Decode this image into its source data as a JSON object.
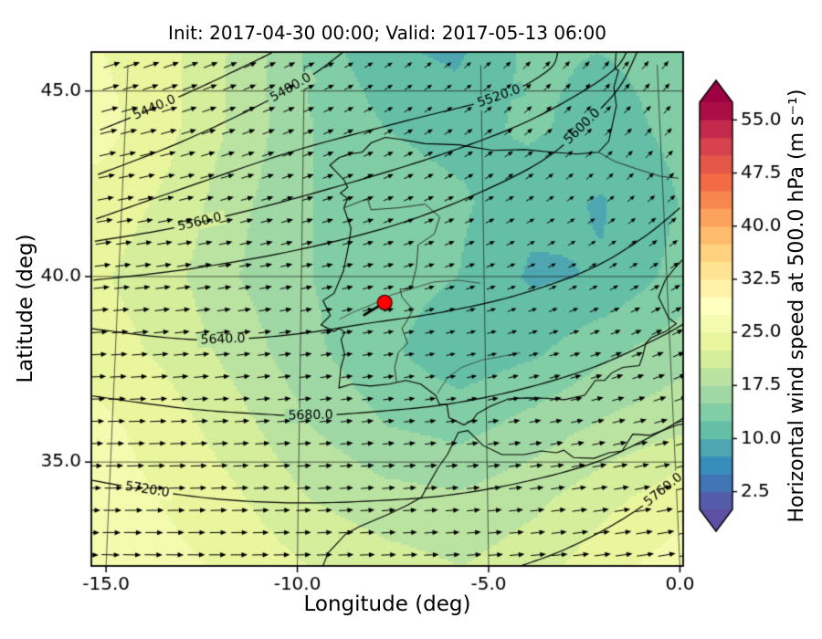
{
  "chart_data": {
    "type": "heatmap",
    "title": "Init: 2017-04-30 00:00; Valid: 2017-05-13 06:00",
    "xlabel": "Longitude (deg)",
    "ylabel": "Latitude (deg)",
    "xlim": [
      -15.7,
      0.4
    ],
    "ylim": [
      32.2,
      46.05
    ],
    "xticks": {
      "values": [
        -15,
        -10,
        -5,
        0
      ],
      "labels": [
        "-15.0",
        "-10.0",
        "-5.0",
        "0.0"
      ]
    },
    "yticks": {
      "values": [
        35,
        40,
        45
      ],
      "labels": [
        "35.0",
        "40.0",
        "45.0"
      ]
    },
    "graticule": {
      "meridians": [
        -15,
        -10,
        -5,
        0
      ],
      "parallels": [
        35,
        40,
        45
      ]
    },
    "colorbar": {
      "label": "Horizontal wind speed at 500.0 hPa (m s⁻¹)",
      "vmin": 0,
      "vmax": 57.5,
      "level_step": 2.5,
      "colormap": "Spectral_r",
      "colors": [
        "#5e4fa2",
        "#3288bd",
        "#66c2a5",
        "#abdda4",
        "#e6f598",
        "#ffffbf",
        "#fee08b",
        "#fdae61",
        "#f46d43",
        "#d53e4f",
        "#9e0142"
      ],
      "tick_values": [
        2.5,
        10.0,
        17.5,
        25.0,
        32.5,
        40.0,
        47.5,
        55.0
      ],
      "tick_labels": [
        "2.5",
        "10.0",
        "17.5",
        "25.0",
        "32.5",
        "40.0",
        "47.5",
        "55.0"
      ]
    },
    "wind_grid": {
      "lons": [
        -15.7,
        -13.7,
        -11.7,
        -9.7,
        -7.7,
        -5.7,
        -3.7,
        -1.7,
        0.4
      ],
      "lats": [
        32.2,
        34,
        36,
        38,
        40,
        42,
        44,
        46.05
      ],
      "speed": [
        [
          27,
          26,
          24.5,
          22.5,
          21,
          20,
          21.5,
          24.5,
          26.5
        ],
        [
          26.5,
          25,
          23,
          20,
          18.5,
          18,
          19.5,
          22,
          24.5
        ],
        [
          26,
          24,
          21,
          17.5,
          15,
          14,
          16,
          18,
          19.5
        ],
        [
          24,
          22,
          19,
          15.5,
          13,
          10.8,
          12,
          14.5,
          16.5
        ],
        [
          23,
          21,
          17.5,
          15,
          13.5,
          12.5,
          9.6,
          10.2,
          13.5
        ],
        [
          24,
          22,
          18,
          15,
          14,
          13,
          10.8,
          9.8,
          12.5
        ],
        [
          26,
          23,
          19,
          15,
          12.5,
          11.5,
          13,
          11.5,
          13
        ],
        [
          25,
          23,
          19,
          14,
          10.5,
          9.5,
          13,
          12.5,
          13
        ]
      ],
      "direction_deg": [
        [
          -2,
          -1,
          0,
          1,
          2,
          3,
          5,
          7,
          10
        ],
        [
          0,
          1,
          2,
          3,
          4,
          5,
          7,
          9,
          12
        ],
        [
          1,
          2,
          4,
          5,
          7,
          8,
          10,
          13,
          16
        ],
        [
          3,
          5,
          7,
          9,
          11,
          13,
          16,
          20,
          24
        ],
        [
          6,
          8,
          10,
          13,
          16,
          19,
          24,
          30,
          34
        ],
        [
          10,
          12,
          15,
          18,
          22,
          26,
          32,
          38,
          42
        ],
        [
          14,
          16,
          20,
          24,
          28,
          34,
          40,
          46,
          48
        ],
        [
          18,
          20,
          24,
          28,
          34,
          40,
          46,
          50,
          52
        ]
      ]
    },
    "quiver": {
      "dlon": 0.56,
      "dlat": 0.6,
      "length_base": 3.5,
      "length_scale": 0.62
    },
    "height_contours": [
      {
        "label": "5440.0",
        "label_lon": -14.2,
        "path": [
          [
            -15.7,
            43.95
          ],
          [
            -14.2,
            44.55
          ],
          [
            -12.6,
            45.25
          ],
          [
            -11.2,
            45.9
          ],
          [
            -10.9,
            46.05
          ]
        ]
      },
      {
        "label": "5480.0",
        "label_lon": -10.4,
        "path": [
          [
            -15.7,
            42.75
          ],
          [
            -13.6,
            43.55
          ],
          [
            -11.5,
            44.5
          ],
          [
            -9.9,
            45.35
          ],
          [
            -8.9,
            46.05
          ]
        ]
      },
      {
        "label": "5520.0",
        "label_lon": -4.5,
        "path": [
          [
            -15.7,
            41.55
          ],
          [
            -13.1,
            42.45
          ],
          [
            -10.2,
            43.4
          ],
          [
            -7.1,
            44.2
          ],
          [
            -4.5,
            44.85
          ],
          [
            -3.1,
            45.55
          ],
          [
            -2.8,
            46.05
          ]
        ]
      },
      {
        "label": "5560.0",
        "label_lon": -12.9,
        "path": [
          [
            -15.7,
            40.95
          ],
          [
            -13.6,
            41.3
          ],
          [
            -11.2,
            41.85
          ],
          [
            -8.6,
            42.55
          ],
          [
            -6.1,
            43.3
          ],
          [
            -3.9,
            44.1
          ],
          [
            -2.2,
            44.95
          ],
          [
            -1.2,
            45.6
          ],
          [
            -0.85,
            46.05
          ]
        ]
      },
      {
        "label": "5600.0",
        "label_lon": -2.15,
        "path": [
          [
            -15.7,
            39.9
          ],
          [
            -13.1,
            40.2
          ],
          [
            -10.2,
            40.7
          ],
          [
            -7.4,
            41.4
          ],
          [
            -5.0,
            42.3
          ],
          [
            -3.2,
            43.2
          ],
          [
            -2.0,
            44.2
          ],
          [
            -1.1,
            45.1
          ],
          [
            -0.55,
            46.05
          ]
        ]
      },
      {
        "label": "5640.0",
        "label_lon": -12.1,
        "path": [
          [
            -15.7,
            38.6
          ],
          [
            -13.6,
            38.35
          ],
          [
            -12.1,
            38.3
          ],
          [
            -10.1,
            38.45
          ],
          [
            -8.1,
            38.75
          ],
          [
            -6.1,
            39.05
          ],
          [
            -4.1,
            39.5
          ],
          [
            -2.1,
            40.2
          ],
          [
            -0.6,
            41.05
          ],
          [
            0.45,
            41.85
          ]
        ]
      },
      {
        "label": "5680.0",
        "label_lon": -9.7,
        "path": [
          [
            -15.7,
            36.8
          ],
          [
            -13.1,
            36.45
          ],
          [
            -11.1,
            36.3
          ],
          [
            -9.7,
            36.25
          ],
          [
            -8.1,
            36.35
          ],
          [
            -6.1,
            36.55
          ],
          [
            -4.1,
            36.95
          ],
          [
            -2.1,
            37.55
          ],
          [
            -0.4,
            38.3
          ],
          [
            0.45,
            38.75
          ]
        ]
      },
      {
        "label": "5720.0",
        "label_lon": -14.0,
        "path": [
          [
            -15.7,
            34.55
          ],
          [
            -14.0,
            34.25
          ],
          [
            -12.1,
            34.0
          ],
          [
            -10.1,
            33.9
          ],
          [
            -8.1,
            33.95
          ],
          [
            -6.1,
            34.1
          ],
          [
            -4.1,
            34.45
          ],
          [
            -2.1,
            35.0
          ],
          [
            -0.4,
            35.8
          ],
          [
            0.45,
            36.3
          ]
        ]
      },
      {
        "label": "5760.0",
        "label_lon": -0.4,
        "path": [
          [
            -4.3,
            32.15
          ],
          [
            -3.1,
            32.6
          ],
          [
            -1.9,
            33.2
          ],
          [
            -0.8,
            33.9
          ],
          [
            0.45,
            34.9
          ]
        ]
      }
    ],
    "coastlines": [
      [
        [
          -1.15,
          46.05
        ],
        [
          -1.2,
          45.6
        ],
        [
          -1.1,
          45.55
        ],
        [
          -1.25,
          45.1
        ],
        [
          -1.2,
          44.6
        ],
        [
          -1.45,
          43.65
        ],
        [
          -1.75,
          43.35
        ],
        [
          -2.35,
          43.3
        ],
        [
          -3.05,
          43.35
        ],
        [
          -3.8,
          43.42
        ],
        [
          -4.7,
          43.4
        ],
        [
          -5.65,
          43.55
        ],
        [
          -6.6,
          43.58
        ],
        [
          -7.3,
          43.7
        ],
        [
          -7.7,
          43.75
        ],
        [
          -8.1,
          43.6
        ],
        [
          -8.35,
          43.35
        ],
        [
          -8.7,
          43.3
        ],
        [
          -9.0,
          43.2
        ],
        [
          -9.25,
          43.0
        ],
        [
          -8.85,
          42.6
        ],
        [
          -8.75,
          42.4
        ],
        [
          -8.95,
          42.25
        ],
        [
          -8.75,
          42.1
        ],
        [
          -8.85,
          41.85
        ],
        [
          -8.65,
          41.3
        ],
        [
          -8.7,
          40.9
        ],
        [
          -8.85,
          40.15
        ],
        [
          -9.1,
          39.55
        ],
        [
          -9.4,
          39.35
        ],
        [
          -9.2,
          38.95
        ],
        [
          -9.45,
          38.7
        ],
        [
          -9.1,
          38.52
        ],
        [
          -8.95,
          38.6
        ],
        [
          -8.8,
          38.5
        ],
        [
          -8.9,
          38.3
        ],
        [
          -8.8,
          37.9
        ],
        [
          -8.9,
          37.55
        ],
        [
          -8.95,
          37.0
        ],
        [
          -8.6,
          37.1
        ],
        [
          -8.1,
          37.05
        ],
        [
          -7.6,
          37.1
        ],
        [
          -7.15,
          37.2
        ],
        [
          -6.75,
          37.1
        ],
        [
          -6.35,
          36.8
        ],
        [
          -6.25,
          36.55
        ],
        [
          -6.05,
          36.55
        ],
        [
          -6.0,
          36.2
        ],
        [
          -5.8,
          36.1
        ],
        [
          -5.6,
          36.0
        ],
        [
          -5.35,
          36.15
        ],
        [
          -5.25,
          36.3
        ],
        [
          -4.9,
          36.5
        ],
        [
          -4.4,
          36.7
        ],
        [
          -3.9,
          36.73
        ],
        [
          -3.4,
          36.72
        ],
        [
          -2.9,
          36.68
        ],
        [
          -2.35,
          36.8
        ],
        [
          -2.05,
          37.2
        ],
        [
          -1.8,
          37.2
        ],
        [
          -1.6,
          37.4
        ],
        [
          -1.3,
          37.55
        ],
        [
          -0.85,
          37.6
        ],
        [
          -0.75,
          37.85
        ],
        [
          -0.65,
          38.2
        ],
        [
          -0.5,
          38.35
        ],
        [
          -0.1,
          38.52
        ],
        [
          0.2,
          38.73
        ],
        [
          0.0,
          38.88
        ],
        [
          -0.25,
          39.45
        ],
        [
          -0.05,
          39.9
        ],
        [
          0.25,
          40.25
        ],
        [
          0.45,
          40.45
        ]
      ],
      [
        [
          -9.35,
          32.15
        ],
        [
          -9.2,
          32.55
        ],
        [
          -8.75,
          33.05
        ],
        [
          -8.4,
          33.25
        ],
        [
          -7.6,
          33.6
        ],
        [
          -7.1,
          33.85
        ],
        [
          -6.75,
          34.05
        ],
        [
          -6.3,
          34.85
        ],
        [
          -6.05,
          35.2
        ],
        [
          -5.9,
          35.5
        ],
        [
          -5.75,
          35.8
        ],
        [
          -5.5,
          35.85
        ],
        [
          -5.35,
          35.7
        ],
        [
          -5.1,
          35.45
        ],
        [
          -4.6,
          35.2
        ],
        [
          -4.0,
          35.2
        ],
        [
          -3.55,
          35.3
        ],
        [
          -3.15,
          35.25
        ],
        [
          -2.95,
          35.32
        ],
        [
          -2.7,
          35.12
        ],
        [
          -2.15,
          35.1
        ],
        [
          -1.75,
          35.25
        ],
        [
          -1.4,
          35.3
        ],
        [
          -1.1,
          35.75
        ],
        [
          -0.65,
          35.72
        ],
        [
          -0.3,
          35.85
        ],
        [
          0.1,
          36.0
        ],
        [
          0.45,
          36.05
        ]
      ]
    ],
    "borders": [
      [
        [
          -1.75,
          43.35
        ],
        [
          -1.3,
          43.1
        ],
        [
          -0.7,
          42.9
        ],
        [
          -0.05,
          42.7
        ],
        [
          0.45,
          42.65
        ]
      ],
      [
        [
          -8.85,
          41.85
        ],
        [
          -8.2,
          42.1
        ],
        [
          -8.1,
          41.8
        ],
        [
          -7.35,
          41.85
        ],
        [
          -6.6,
          41.95
        ],
        [
          -6.2,
          41.6
        ],
        [
          -6.35,
          41.15
        ],
        [
          -6.8,
          40.85
        ],
        [
          -6.85,
          40.25
        ],
        [
          -7.0,
          39.68
        ],
        [
          -7.3,
          39.66
        ],
        [
          -7.25,
          39.45
        ],
        [
          -6.95,
          39.1
        ],
        [
          -7.15,
          38.75
        ],
        [
          -7.25,
          38.6
        ],
        [
          -7.1,
          38.2
        ],
        [
          -7.35,
          37.95
        ],
        [
          -7.45,
          37.55
        ],
        [
          -7.4,
          37.15
        ]
      ]
    ],
    "rivers": [
      [
        [
          -8.95,
          38.85
        ],
        [
          -8.55,
          39.05
        ],
        [
          -8.05,
          39.25
        ],
        [
          -7.55,
          39.5
        ],
        [
          -6.95,
          39.68
        ],
        [
          -6.4,
          39.85
        ],
        [
          -5.7,
          39.9
        ],
        [
          -5.1,
          39.82
        ]
      ],
      [
        [
          -6.3,
          36.85
        ],
        [
          -6.05,
          37.25
        ],
        [
          -5.65,
          37.55
        ],
        [
          -5.1,
          37.75
        ],
        [
          -4.55,
          37.85
        ],
        [
          -4.05,
          37.95
        ]
      ]
    ],
    "marker": {
      "lon": -7.72,
      "lat": 39.3,
      "color": "#ff0000",
      "edge": "#330000",
      "trail": [
        [
          -8.3,
          38.95
        ],
        [
          -7.72,
          39.3
        ]
      ]
    }
  }
}
